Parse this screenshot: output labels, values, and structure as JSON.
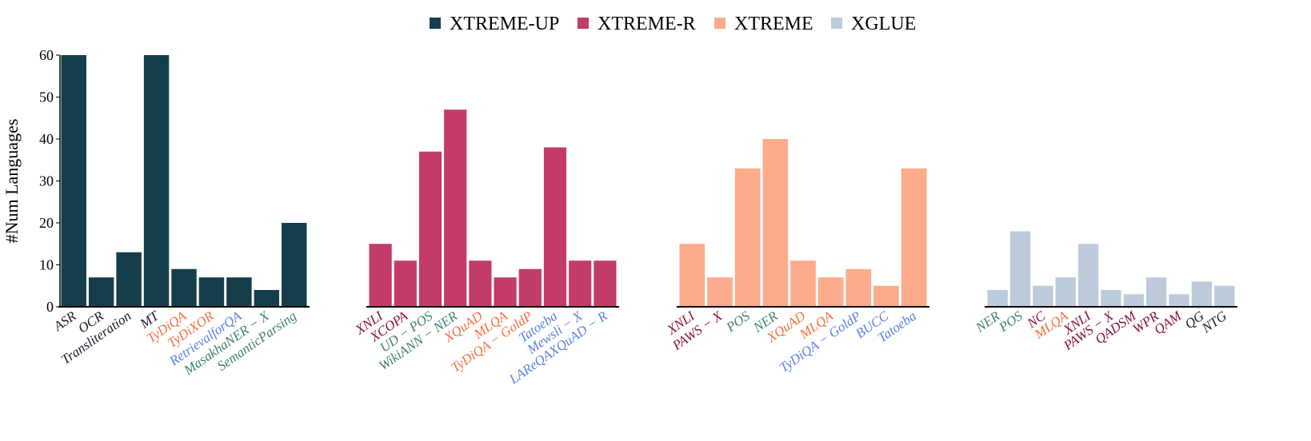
{
  "chart_data": {
    "type": "bar",
    "ylabel": "#Num Languages",
    "ylim": [
      0,
      60
    ],
    "yticks": [
      0,
      10,
      20,
      30,
      40,
      50,
      60
    ],
    "legend_position": "top-center",
    "grid": false,
    "category_colors": {
      "default": "#1a1a2e",
      "orange": "#f07040",
      "green": "#3f8070",
      "blue": "#5b7fe6",
      "maroon": "#8b1040"
    },
    "groups": [
      {
        "name": "XTREME-UP",
        "color": "#143e4b",
        "categories": [
          "ASR",
          "OCR",
          "Transliteration",
          "MT",
          "TyDiQA",
          "TyDiXOR",
          "RetrievalforQA",
          "MasakhaNER − X",
          "SemanticParsing"
        ],
        "label_colors": [
          "default",
          "default",
          "default",
          "default",
          "orange",
          "orange",
          "blue",
          "green",
          "green"
        ],
        "values": [
          60,
          7,
          13,
          60,
          9,
          7,
          7,
          4,
          20
        ]
      },
      {
        "name": "XTREME-R",
        "color": "#c33c69",
        "categories": [
          "XNLI",
          "XCOPA",
          "UD − POS",
          "WikiANN − NER",
          "XQuAD",
          "MLQA",
          "TyDiQA − GoldP",
          "Tatoeba",
          "Mewsli − X",
          "LAReQAXQuAD − R"
        ],
        "label_colors": [
          "maroon",
          "maroon",
          "green",
          "green",
          "orange",
          "orange",
          "orange",
          "blue",
          "blue",
          "blue"
        ],
        "values": [
          15,
          11,
          37,
          47,
          11,
          7,
          9,
          38,
          11,
          11
        ]
      },
      {
        "name": "XTREME",
        "color": "#fcab8b",
        "categories": [
          "XNLI",
          "PAWS − X",
          "POS",
          "NER",
          "XQuAD",
          "MLQA",
          "TyDiQA − GoldP",
          "BUCC",
          "Tatoeba"
        ],
        "label_colors": [
          "maroon",
          "maroon",
          "green",
          "green",
          "orange",
          "orange",
          "blue",
          "blue",
          "blue"
        ],
        "values": [
          15,
          7,
          33,
          40,
          11,
          7,
          9,
          5,
          33
        ]
      },
      {
        "name": "XGLUE",
        "color": "#bdcbdd",
        "categories": [
          "NER",
          "POS",
          "NC",
          "MLQA",
          "XNLI",
          "PAWS − X",
          "QADSM",
          "WPR",
          "QAM",
          "QG",
          "NTG"
        ],
        "label_colors": [
          "green",
          "green",
          "maroon",
          "orange",
          "maroon",
          "maroon",
          "maroon",
          "maroon",
          "maroon",
          "default",
          "default"
        ],
        "values": [
          4,
          18,
          5,
          7,
          15,
          4,
          3,
          7,
          3,
          6,
          5
        ]
      }
    ]
  }
}
